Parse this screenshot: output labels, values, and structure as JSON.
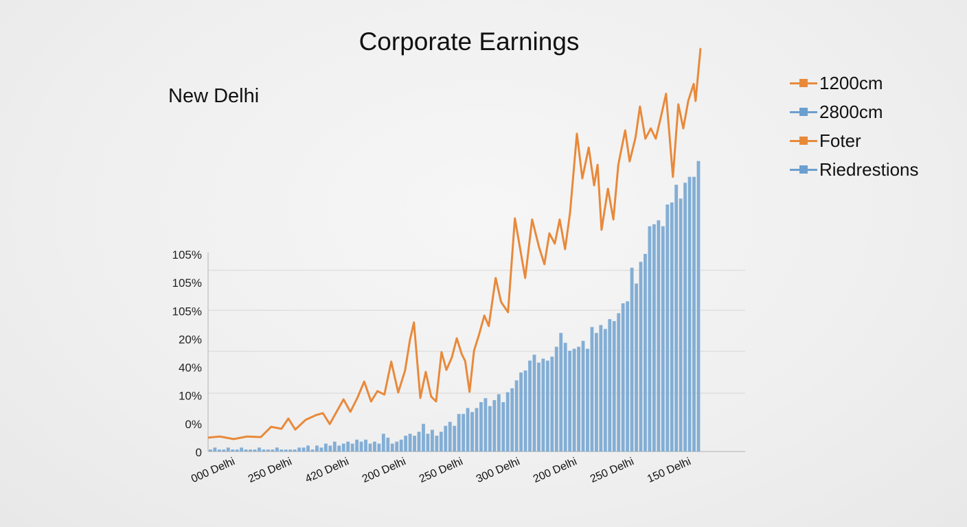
{
  "colors": {
    "orange": "#E8893A",
    "blue": "#6B9FCF",
    "bar": "#7AA8D3",
    "grid": "#d6d6d6",
    "axis": "#bdbdbd"
  },
  "chart_data": {
    "type": "bar+line",
    "title": "Corporate Earnings",
    "subtitle": "New Delhi",
    "xlabel": "",
    "ylabel": "",
    "ylim": [
      0,
      210
    ],
    "xlim": [
      0,
      100
    ],
    "y_tick_labels": [
      "105%",
      "105%",
      "105%",
      "20%",
      "40%",
      "10%",
      "0%",
      "0"
    ],
    "x_tick_labels": [
      "000 Delhi",
      "250 Delhi",
      "420 Delhi",
      "200 Delhi",
      "250 Delhi",
      "300 Delhi",
      "200 Delhi",
      "250 Delhi",
      "150 Delhi"
    ],
    "gridlines": [
      91.7,
      71.5,
      50.7,
      29.5
    ],
    "legend": {
      "placement": "top-right",
      "entries": [
        {
          "label": "1200cm",
          "color": "#E8893A"
        },
        {
          "label": "2800cm",
          "color": "#6B9FCF"
        },
        {
          "label": "Foter",
          "color": "#E8893A"
        },
        {
          "label": "Riedrestions",
          "color": "#6B9FCF"
        }
      ]
    },
    "line_series": {
      "name": "1200cm",
      "x": [
        0,
        2.4,
        5.2,
        7.9,
        10.7,
        12.8,
        14.9,
        16.3,
        17.7,
        19.8,
        21.9,
        23.3,
        24.7,
        26.1,
        27.5,
        28.9,
        30.3,
        31.7,
        33.1,
        34.4,
        35.8,
        37.2,
        38.6,
        40,
        41,
        41.8,
        43.1,
        44.2,
        45.3,
        46.3,
        47.4,
        48.4,
        49.5,
        50.5,
        51.5,
        52.2,
        53.1,
        54,
        55,
        56.1,
        57,
        58.4,
        59.5,
        60.9,
        62.3,
        63.3,
        64.4,
        65.8,
        67.2,
        68.3,
        69.3,
        70.4,
        71.4,
        72.5,
        73.5,
        74.9,
        76,
        77.3,
        78.4,
        79.1,
        79.9,
        81.2,
        82.3,
        83.3,
        84.7,
        85.6,
        86.8,
        87.7,
        88.8,
        89.9,
        90.9,
        91.9,
        93,
        94.4,
        95.5,
        96.5,
        97.5,
        98.6,
        99,
        100
      ],
      "y": [
        7,
        7.6,
        6.3,
        7.6,
        7.3,
        12.5,
        11.5,
        16.7,
        11.1,
        16,
        18.4,
        19.4,
        13.9,
        20.1,
        26.4,
        20.1,
        27.1,
        35.4,
        25.3,
        30.6,
        28.8,
        45.5,
        29.9,
        41,
        56.6,
        65.3,
        27.1,
        40.3,
        27.8,
        25.3,
        50.3,
        41.3,
        47.6,
        57.3,
        49.3,
        45.8,
        30.2,
        51,
        59,
        68.8,
        63.5,
        87.8,
        75.7,
        70.5,
        118,
        103.5,
        87.8,
        117.4,
        103.5,
        94.8,
        110.4,
        105.2,
        117.4,
        102.4,
        120.8,
        160.8,
        138.2,
        153.8,
        134.7,
        145.1,
        112.2,
        133,
        117.4,
        145.1,
        162.5,
        146.8,
        159,
        174.6,
        158.3,
        163.5,
        158.3,
        168.7,
        181,
        139,
        175.7,
        163.5,
        177.4,
        186,
        177.4,
        204
      ]
    },
    "bar_series": {
      "name": "2800cm",
      "values": [
        1,
        2,
        1,
        1,
        2,
        1,
        1,
        2,
        1,
        1,
        1,
        2,
        1,
        1,
        1,
        2,
        1,
        1,
        1,
        1,
        2,
        2,
        3,
        1,
        3,
        2,
        4,
        3,
        5,
        3,
        4,
        5,
        4,
        6,
        5,
        6,
        4,
        5,
        4,
        9,
        7,
        4,
        5,
        6,
        8,
        9,
        8,
        10,
        14,
        9,
        11,
        8,
        10,
        13,
        15,
        13,
        19,
        19,
        22,
        20,
        22,
        25,
        27,
        23,
        26,
        29,
        25,
        30,
        32,
        36,
        40,
        41,
        46,
        49,
        45,
        47,
        46,
        48,
        53,
        60,
        55,
        51,
        52,
        53,
        56,
        52,
        63,
        60,
        64,
        62,
        67,
        66,
        70,
        75,
        76,
        93,
        85,
        96,
        100,
        114,
        115,
        117,
        114,
        125,
        126,
        135,
        128,
        136,
        139,
        139,
        147
      ]
    }
  }
}
